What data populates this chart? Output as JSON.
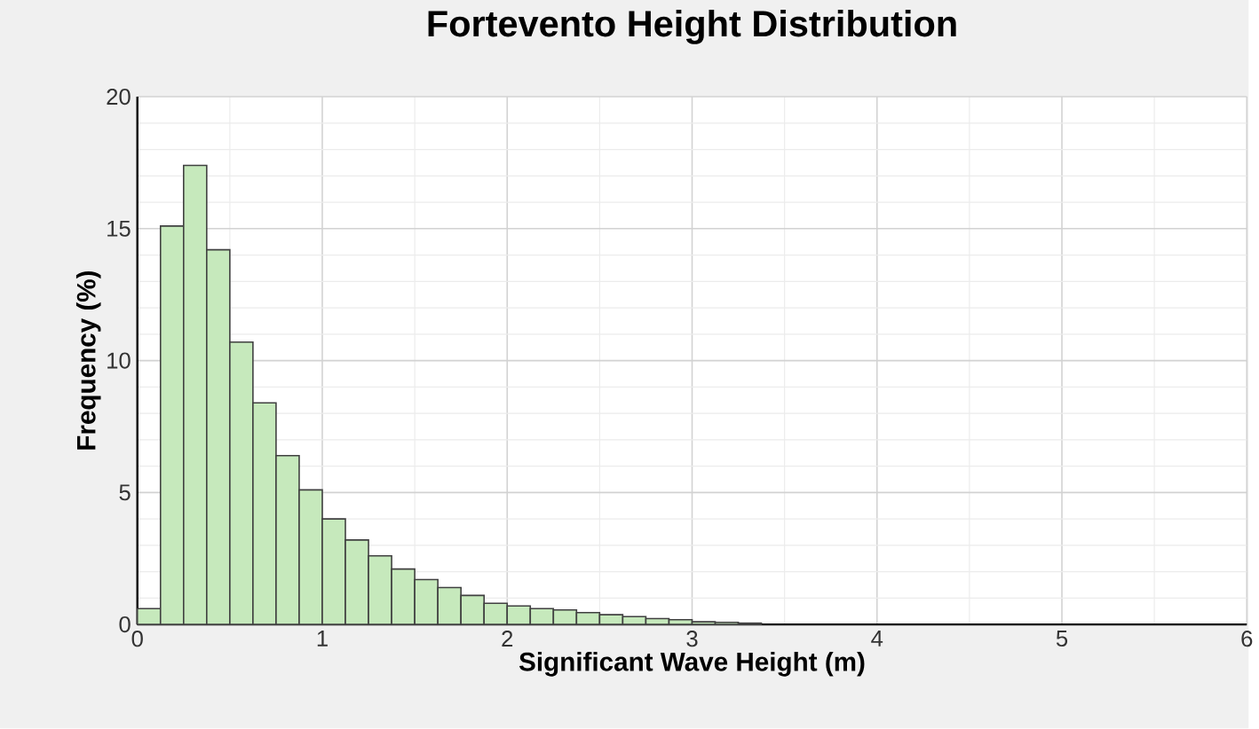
{
  "chart_data": {
    "type": "histogram",
    "title": "Fortevento Height Distribution",
    "xlabel": "Significant Wave Height (m)",
    "ylabel": "Frequency (%)",
    "bins": [
      0,
      0.125,
      0.25,
      0.375,
      0.5,
      0.625,
      0.75,
      0.875,
      1,
      1.125,
      1.25,
      1.375,
      1.5,
      1.625,
      1.75,
      1.875,
      2,
      2.125,
      2.25,
      2.375,
      2.5,
      2.625,
      2.75,
      2.875,
      3,
      3.125,
      3.25,
      3.375
    ],
    "values": [
      0.6,
      15.1,
      17.4,
      14.2,
      10.7,
      8.4,
      6.4,
      5.1,
      4.0,
      3.2,
      2.6,
      2.1,
      1.7,
      1.4,
      1.1,
      0.8,
      0.7,
      0.6,
      0.55,
      0.45,
      0.37,
      0.3,
      0.22,
      0.18,
      0.1,
      0.08,
      0.05
    ],
    "color": "#c6e9bc",
    "xlim": [
      0,
      6
    ],
    "ylim": [
      0,
      20
    ],
    "xticks": [
      0,
      1,
      2,
      3,
      4,
      5,
      6
    ],
    "yticks": [
      0,
      5,
      10,
      15,
      20
    ],
    "grid": true
  }
}
